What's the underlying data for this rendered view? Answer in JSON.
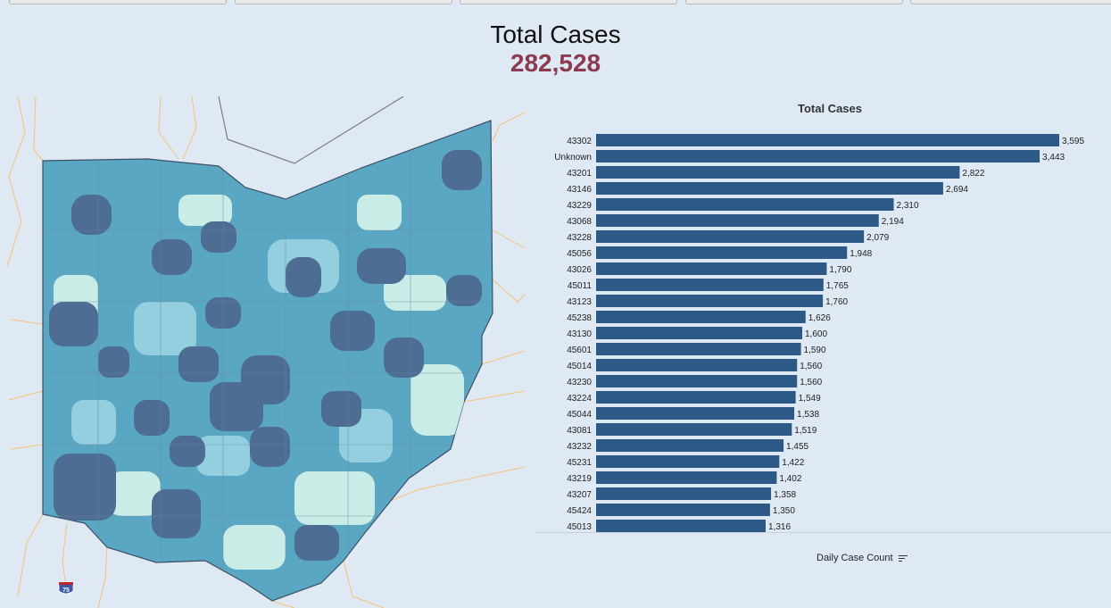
{
  "summary": {
    "title": "Total Cases",
    "value": "282,528"
  },
  "colors": {
    "background": "#dfe9f3",
    "bar": "#2d5986",
    "accent_value": "#8b3a4f",
    "map_dark": "#4d6e92",
    "map_mid": "#5aa7c4",
    "map_light": "#c9ece6"
  },
  "map": {
    "highway_shield": "75"
  },
  "chart_data": {
    "type": "bar",
    "orientation": "horizontal",
    "title": "Total Cases",
    "categories": [
      "43302",
      "Unknown",
      "43201",
      "43146",
      "43229",
      "43068",
      "43228",
      "45056",
      "43026",
      "45011",
      "43123",
      "45238",
      "43130",
      "45601",
      "45014",
      "43230",
      "43224",
      "45044",
      "43081",
      "43232",
      "45231",
      "43219",
      "43207",
      "45424",
      "45013"
    ],
    "values": [
      3595,
      3443,
      2822,
      2694,
      2310,
      2194,
      2079,
      1948,
      1790,
      1765,
      1760,
      1626,
      1600,
      1590,
      1560,
      1560,
      1549,
      1538,
      1519,
      1455,
      1422,
      1402,
      1358,
      1350,
      1316
    ],
    "value_labels": [
      "3,595",
      "3,443",
      "2,822",
      "2,694",
      "2,310",
      "2,194",
      "2,079",
      "1,948",
      "1,790",
      "1,765",
      "1,760",
      "1,626",
      "1,600",
      "1,590",
      "1,560",
      "1,560",
      "1,549",
      "1,538",
      "1,519",
      "1,455",
      "1,422",
      "1,402",
      "1,358",
      "1,350",
      "1,316"
    ],
    "xlim": [
      0,
      3595
    ],
    "grid": false
  },
  "footer": {
    "sort_label": "Daily Case Count",
    "sort_icon": "sort-descending-icon"
  }
}
